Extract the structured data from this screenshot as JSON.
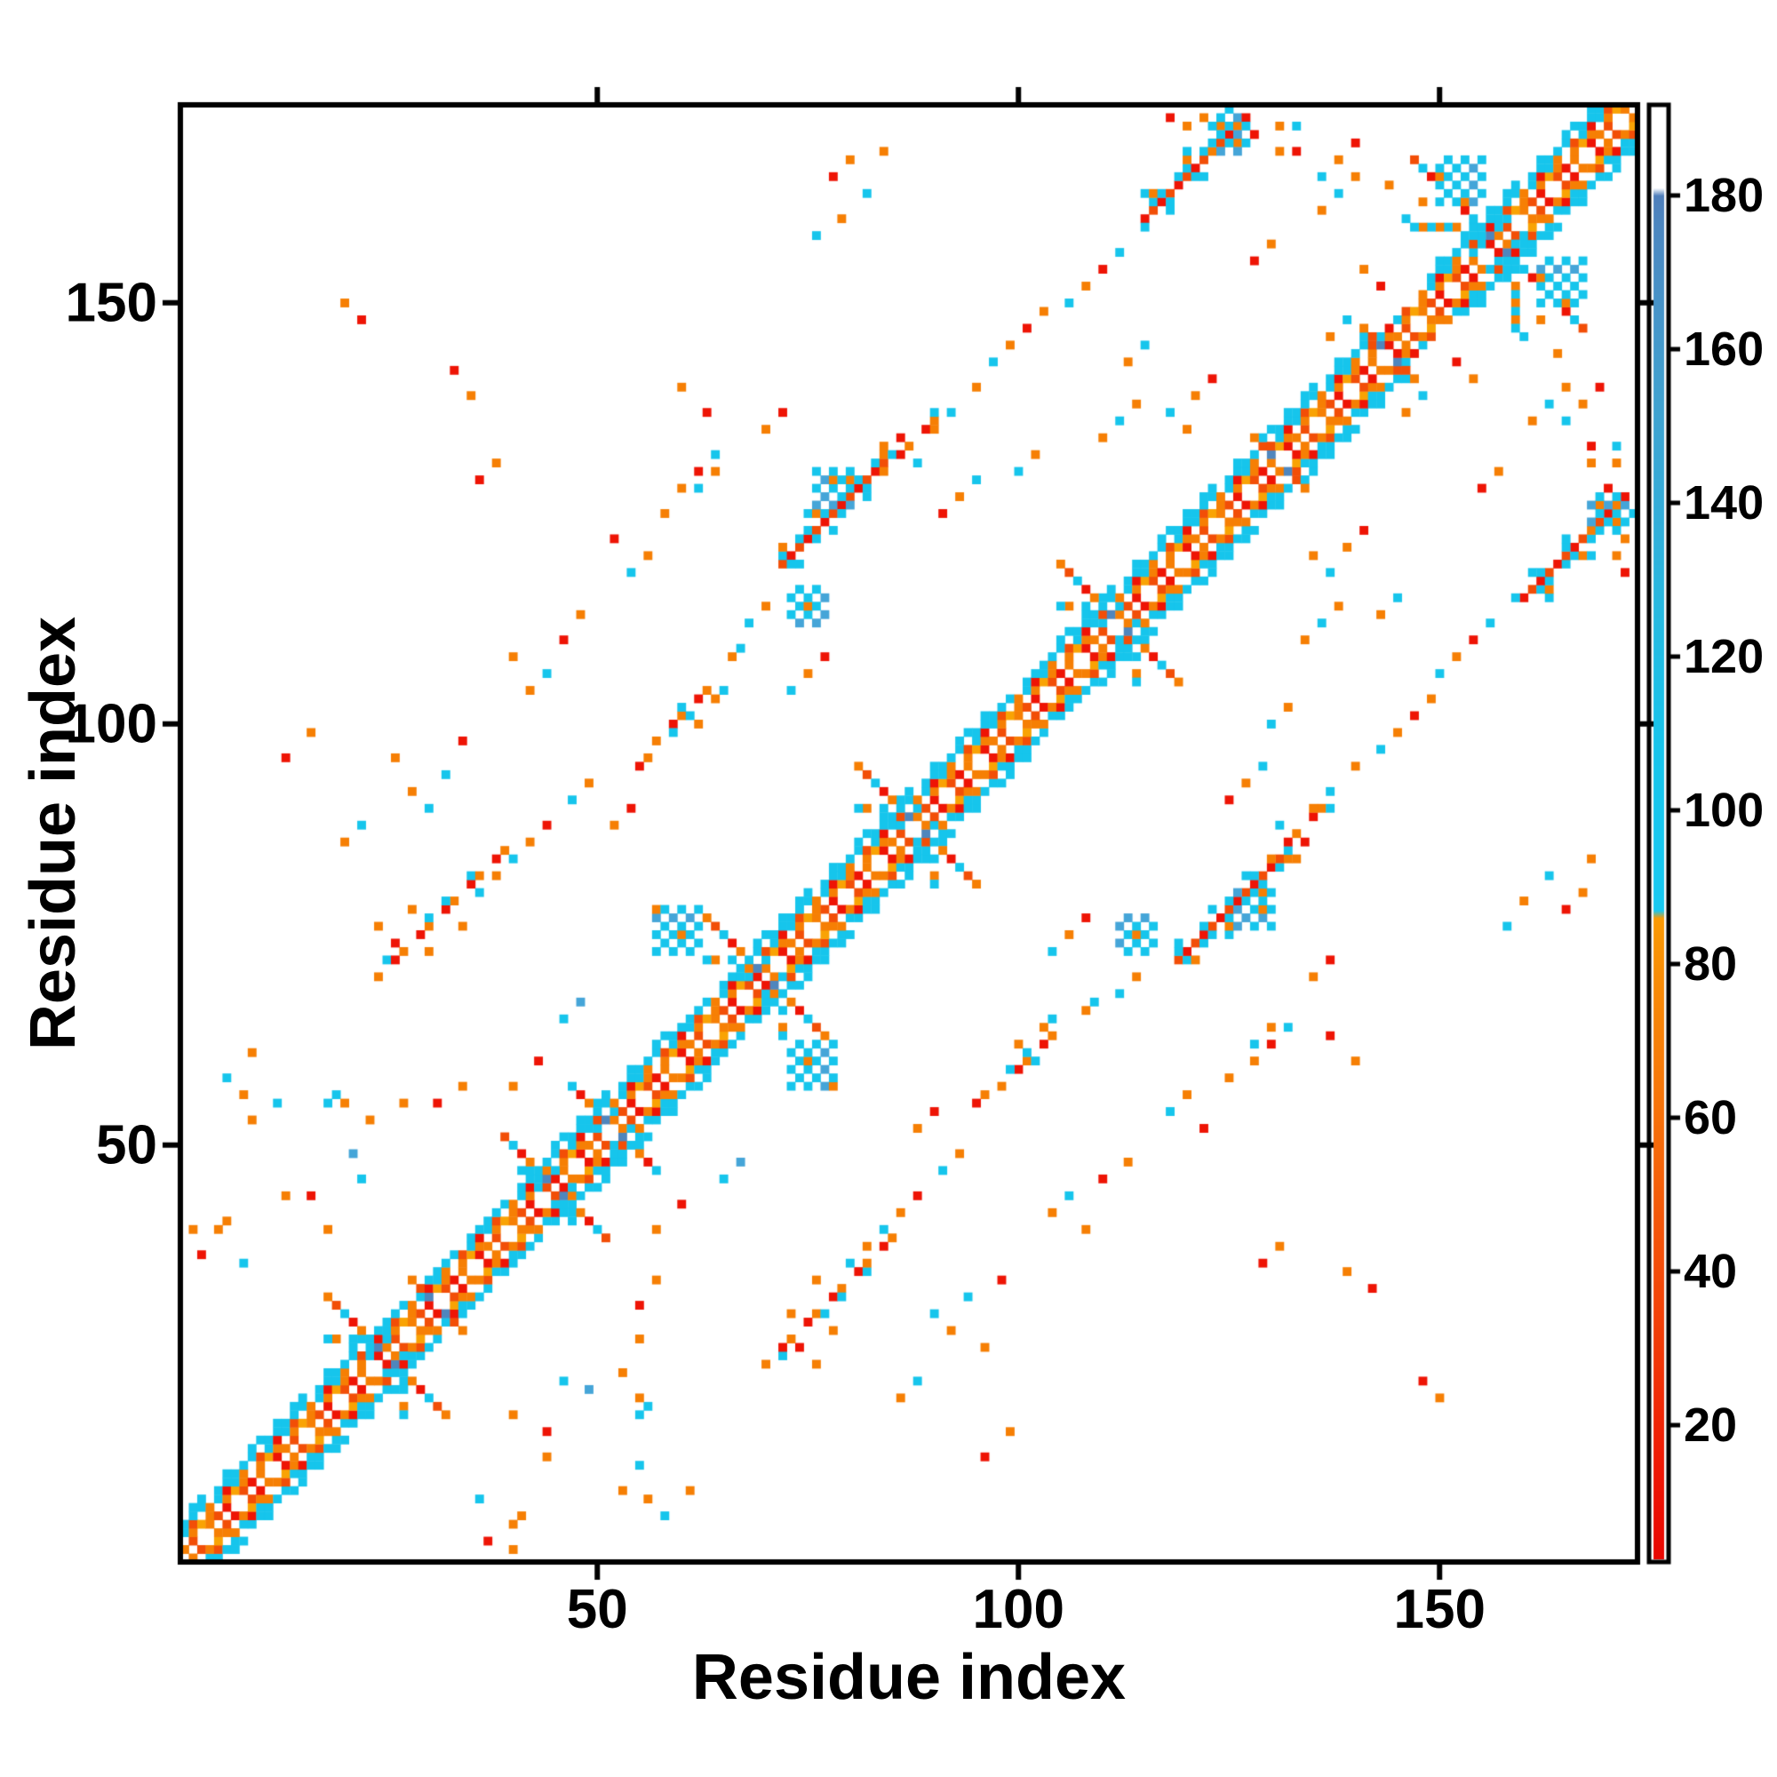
{
  "page": {
    "background": "#ffffff"
  },
  "chart_data": {
    "type": "heatmap",
    "subtype": "protein-contact-map",
    "title": "",
    "xlabel": "Residue index",
    "ylabel": "Residue index",
    "x_ticks": [
      50,
      100,
      150
    ],
    "y_ticks": [
      50,
      100,
      150
    ],
    "axis_range": [
      1,
      173
    ],
    "n_residues": 173,
    "grid": false,
    "background": "#ffffff",
    "legend_position": "colorbar-right",
    "colorbar": {
      "ticks": [
        20,
        40,
        60,
        80,
        100,
        120,
        140,
        160,
        180
      ],
      "range": [
        0,
        192
      ],
      "gradient_stops": [
        [
          0,
          "#e60301"
        ],
        [
          14,
          "#ee1705"
        ],
        [
          30,
          "#f13a08"
        ],
        [
          47,
          "#f4580b"
        ],
        [
          63,
          "#f6760b"
        ],
        [
          78,
          "#f88c07"
        ],
        [
          86,
          "#fa9a04"
        ],
        [
          87,
          "#18c9f1"
        ],
        [
          108,
          "#17c4eb"
        ],
        [
          126,
          "#27b9e0"
        ],
        [
          140,
          "#35acd8"
        ],
        [
          154,
          "#41a1cf"
        ],
        [
          166,
          "#4793c8"
        ],
        [
          176,
          "#4c87c0"
        ],
        [
          180,
          "#4f7fbb"
        ],
        [
          181,
          "#ffffff"
        ],
        [
          192,
          "#ffffff"
        ]
      ]
    },
    "palette": {
      "r": "#ee1405",
      "e": "#f24e07",
      "o": "#f67f04",
      "a": "#f9a304",
      "c": "#16c5ec",
      "s": "#45a5d8",
      "b": "#4f86bd",
      "w": "#ffffff"
    },
    "matrix": {
      "n": 173,
      "symmetric": true,
      "diagonal": "white",
      "band_segments": [
        [
          1,
          22,
          5
        ],
        [
          23,
          40,
          4
        ],
        [
          41,
          58,
          5
        ],
        [
          59,
          66,
          4
        ],
        [
          67,
          96,
          5
        ],
        [
          97,
          103,
          4
        ],
        [
          104,
          141,
          5
        ],
        [
          142,
          148,
          3
        ],
        [
          149,
          173,
          5
        ]
      ],
      "crossings": [
        [
          25,
          7,
          2
        ],
        [
          31,
          3,
          1
        ],
        [
          45,
          6,
          2
        ],
        [
          52,
          5,
          2
        ],
        [
          70,
          8,
          2
        ],
        [
          88,
          7,
          2
        ],
        [
          112,
          7,
          2
        ],
        [
          131,
          3,
          1
        ],
        [
          144,
          3,
          1
        ],
        [
          157,
          10,
          3
        ]
      ],
      "ladders": [
        [
          72,
          84,
          47,
          "dense"
        ],
        [
          115,
          127,
          45,
          "dense"
        ],
        [
          24,
          39,
          46,
          "sparse"
        ],
        [
          57,
          64,
          41,
          "sparse"
        ],
        [
          84,
          90,
          46,
          "sparse"
        ]
      ],
      "blocks": [
        [
          57,
          62,
          73,
          78
        ],
        [
          73,
          77,
          112,
          116
        ],
        [
          76,
          80,
          126,
          130
        ],
        [
          123,
          127,
          168,
          172
        ],
        [
          150,
          155,
          162,
          167
        ]
      ],
      "dots": [
        [
          3,
          37,
          "r"
        ],
        [
          5,
          40,
          "o"
        ],
        [
          6,
          41,
          "o"
        ],
        [
          8,
          36,
          "c"
        ],
        [
          2,
          40,
          "o"
        ],
        [
          13,
          44,
          "o"
        ],
        [
          18,
          55,
          "c"
        ],
        [
          19,
          56,
          "c"
        ],
        [
          20,
          55,
          "o"
        ],
        [
          23,
          53,
          "o"
        ],
        [
          27,
          55,
          "o"
        ],
        [
          31,
          55,
          "r"
        ],
        [
          34,
          57,
          "o"
        ],
        [
          36,
          80,
          "c"
        ],
        [
          38,
          82,
          "o"
        ],
        [
          40,
          84,
          "c"
        ],
        [
          42,
          86,
          "o"
        ],
        [
          44,
          88,
          "r"
        ],
        [
          24,
          76,
          "o"
        ],
        [
          26,
          74,
          "r"
        ],
        [
          28,
          78,
          "o"
        ],
        [
          30,
          73,
          "o"
        ],
        [
          32,
          79,
          "c"
        ],
        [
          34,
          76,
          "o"
        ],
        [
          43,
          60,
          "r"
        ],
        [
          40,
          57,
          "o"
        ],
        [
          46,
          65,
          "c"
        ],
        [
          48,
          67,
          "s"
        ],
        [
          47,
          91,
          "c"
        ],
        [
          49,
          93,
          "o"
        ],
        [
          52,
          88,
          "o"
        ],
        [
          54,
          90,
          "r"
        ],
        [
          55,
          95,
          "r"
        ],
        [
          56,
          96,
          "o"
        ],
        [
          59,
          99,
          "c"
        ],
        [
          61,
          101,
          "c"
        ],
        [
          62,
          100,
          "o"
        ],
        [
          64,
          103,
          "o"
        ],
        [
          65,
          104,
          "c"
        ],
        [
          60,
          128,
          "o"
        ],
        [
          62,
          130,
          "r"
        ],
        [
          64,
          132,
          "c"
        ],
        [
          60,
          140,
          "o"
        ],
        [
          63,
          137,
          "r"
        ],
        [
          36,
          129,
          "r"
        ],
        [
          38,
          131,
          "o"
        ],
        [
          33,
          142,
          "r"
        ],
        [
          35,
          139,
          "o"
        ],
        [
          20,
          150,
          "o"
        ],
        [
          22,
          148,
          "r"
        ],
        [
          66,
          108,
          "o"
        ],
        [
          67,
          109,
          "c"
        ],
        [
          68,
          112,
          "c"
        ],
        [
          70,
          114,
          "o"
        ],
        [
          73,
          104,
          "c"
        ],
        [
          75,
          106,
          "o"
        ],
        [
          77,
          108,
          "r"
        ],
        [
          84,
          132,
          "o"
        ],
        [
          86,
          134,
          "r"
        ],
        [
          88,
          131,
          "c"
        ],
        [
          90,
          135,
          "o"
        ],
        [
          92,
          137,
          "c"
        ],
        [
          95,
          140,
          "o"
        ],
        [
          97,
          143,
          "c"
        ],
        [
          99,
          145,
          "o"
        ],
        [
          101,
          147,
          "r"
        ],
        [
          103,
          149,
          "o"
        ],
        [
          91,
          125,
          "r"
        ],
        [
          93,
          127,
          "o"
        ],
        [
          95,
          129,
          "c"
        ],
        [
          100,
          130,
          "c"
        ],
        [
          102,
          132,
          "o"
        ],
        [
          106,
          150,
          "c"
        ],
        [
          108,
          152,
          "o"
        ],
        [
          110,
          154,
          "r"
        ],
        [
          112,
          156,
          "c"
        ],
        [
          113,
          143,
          "o"
        ],
        [
          115,
          145,
          "c"
        ],
        [
          110,
          134,
          "o"
        ],
        [
          112,
          136,
          "c"
        ],
        [
          114,
          138,
          "o"
        ],
        [
          118,
          172,
          "r"
        ],
        [
          120,
          171,
          "o"
        ],
        [
          122,
          172,
          "o"
        ],
        [
          126,
          169,
          "o"
        ],
        [
          131,
          171,
          "o"
        ],
        [
          133,
          168,
          "r"
        ],
        [
          136,
          161,
          "o"
        ],
        [
          138,
          163,
          "c"
        ],
        [
          140,
          165,
          "o"
        ],
        [
          128,
          155,
          "r"
        ],
        [
          130,
          157,
          "o"
        ],
        [
          135,
          120,
          "o"
        ],
        [
          137,
          118,
          "c"
        ],
        [
          139,
          121,
          "o"
        ],
        [
          141,
          123,
          "r"
        ],
        [
          146,
          137,
          "o"
        ],
        [
          148,
          139,
          "c"
        ],
        [
          152,
          143,
          "r"
        ],
        [
          154,
          141,
          "o"
        ],
        [
          160,
          146,
          "c"
        ],
        [
          162,
          148,
          "o"
        ],
        [
          164,
          144,
          "o"
        ],
        [
          165,
          136,
          "c"
        ],
        [
          167,
          138,
          "o"
        ],
        [
          169,
          140,
          "r"
        ],
        [
          168,
          131,
          "o"
        ],
        [
          170,
          128,
          "r"
        ],
        [
          171,
          133,
          "c"
        ],
        [
          78,
          165,
          "r"
        ],
        [
          80,
          167,
          "o"
        ],
        [
          82,
          163,
          "c"
        ],
        [
          84,
          168,
          "o"
        ],
        [
          79,
          160,
          "o"
        ],
        [
          76,
          158,
          "c"
        ],
        [
          40,
          18,
          "o"
        ],
        [
          44,
          16,
          "r"
        ],
        [
          46,
          22,
          "c"
        ],
        [
          49,
          21,
          "s"
        ],
        [
          53,
          9,
          "o"
        ],
        [
          55,
          12,
          "c"
        ],
        [
          56,
          8,
          "o"
        ],
        [
          58,
          6,
          "c"
        ],
        [
          61,
          9,
          "o"
        ],
        [
          86,
          20,
          "o"
        ],
        [
          88,
          22,
          "c"
        ],
        [
          90,
          30,
          "c"
        ],
        [
          92,
          28,
          "o"
        ],
        [
          94,
          32,
          "c"
        ],
        [
          96,
          26,
          "o"
        ],
        [
          98,
          34,
          "r"
        ],
        [
          96,
          13,
          "r"
        ],
        [
          99,
          16,
          "o"
        ],
        [
          104,
          42,
          "o"
        ],
        [
          106,
          44,
          "c"
        ],
        [
          108,
          40,
          "o"
        ],
        [
          110,
          46,
          "r"
        ],
        [
          113,
          48,
          "o"
        ],
        [
          118,
          54,
          "c"
        ],
        [
          120,
          56,
          "o"
        ],
        [
          122,
          52,
          "r"
        ],
        [
          125,
          58,
          "o"
        ],
        [
          128,
          62,
          "c"
        ],
        [
          130,
          64,
          "o"
        ],
        [
          135,
          70,
          "o"
        ],
        [
          137,
          72,
          "r"
        ]
      ]
    }
  }
}
